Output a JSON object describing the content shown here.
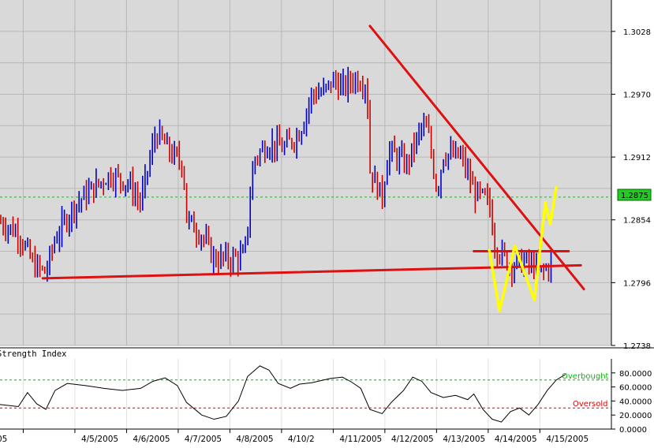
{
  "chart_data": {
    "type": "candlestick",
    "price_axis": {
      "ticks": [
        "1.3028",
        "1.2970",
        "1.2912",
        "1.2854",
        "1.2796",
        "1.2738"
      ],
      "tick_values": [
        1.3028,
        1.297,
        1.2912,
        1.2854,
        1.2796,
        1.2738
      ],
      "range": [
        1.2738,
        1.3057
      ]
    },
    "current_price": {
      "label": "1.2875",
      "value": 1.2875,
      "color": "#00aa00"
    },
    "x_labels": [
      "05",
      "4/5/2005",
      "4/6/2005",
      "4/7/2005",
      "4/8/2005",
      "4/10/2",
      "4/11/2005",
      "4/12/2005",
      "4/13/2005",
      "4/14/2005",
      "4/15/2005"
    ],
    "price_path": [
      [
        0,
        1.2852
      ],
      [
        0.03,
        1.2842
      ],
      [
        0.055,
        1.2812
      ],
      [
        0.075,
        1.2805
      ],
      [
        0.09,
        1.2836
      ],
      [
        0.12,
        1.2866
      ],
      [
        0.15,
        1.2882
      ],
      [
        0.18,
        1.2896
      ],
      [
        0.21,
        1.2888
      ],
      [
        0.23,
        1.287
      ],
      [
        0.255,
        1.2935
      ],
      [
        0.28,
        1.2915
      ],
      [
        0.3,
        1.2905
      ],
      [
        0.305,
        1.2855
      ],
      [
        0.33,
        1.284
      ],
      [
        0.35,
        1.2818
      ],
      [
        0.375,
        1.2818
      ],
      [
        0.4,
        1.282
      ],
      [
        0.415,
        1.291
      ],
      [
        0.44,
        1.2925
      ],
      [
        0.465,
        1.292
      ],
      [
        0.49,
        1.2935
      ],
      [
        0.51,
        1.297
      ],
      [
        0.53,
        1.2972
      ],
      [
        0.545,
        1.2983
      ],
      [
        0.56,
        1.2975
      ],
      [
        0.58,
        1.2985
      ],
      [
        0.6,
        1.298
      ],
      [
        0.605,
        1.29
      ],
      [
        0.625,
        1.2875
      ],
      [
        0.635,
        1.2918
      ],
      [
        0.665,
        1.2905
      ],
      [
        0.69,
        1.294
      ],
      [
        0.7,
        1.2935
      ],
      [
        0.715,
        1.288
      ],
      [
        0.725,
        1.2915
      ],
      [
        0.755,
        1.2912
      ],
      [
        0.775,
        1.288
      ],
      [
        0.8,
        1.287
      ],
      [
        0.81,
        1.283
      ],
      [
        0.835,
        1.2812
      ],
      [
        0.86,
        1.2815
      ],
      [
        0.885,
        1.2805
      ],
      [
        0.905,
        1.2815
      ]
    ],
    "rsi": {
      "title": "Strength Index",
      "axis_labels": [
        "80.0000",
        "60.0000",
        "40.0000",
        "20.0000",
        "0.0000"
      ],
      "axis_values": [
        80,
        60,
        40,
        20,
        0
      ],
      "overbought": {
        "label": "Overbought",
        "value": 70
      },
      "oversold": {
        "label": "Oversold",
        "value": 30
      },
      "values": [
        [
          0,
          35
        ],
        [
          0.03,
          32
        ],
        [
          0.045,
          52
        ],
        [
          0.06,
          36
        ],
        [
          0.075,
          28
        ],
        [
          0.09,
          55
        ],
        [
          0.11,
          65
        ],
        [
          0.14,
          62
        ],
        [
          0.17,
          58
        ],
        [
          0.2,
          55
        ],
        [
          0.23,
          58
        ],
        [
          0.25,
          68
        ],
        [
          0.27,
          73
        ],
        [
          0.29,
          62
        ],
        [
          0.305,
          38
        ],
        [
          0.33,
          20
        ],
        [
          0.35,
          14
        ],
        [
          0.37,
          18
        ],
        [
          0.39,
          40
        ],
        [
          0.405,
          75
        ],
        [
          0.425,
          90
        ],
        [
          0.44,
          84
        ],
        [
          0.455,
          65
        ],
        [
          0.475,
          58
        ],
        [
          0.49,
          64
        ],
        [
          0.51,
          66
        ],
        [
          0.54,
          72
        ],
        [
          0.56,
          74
        ],
        [
          0.575,
          67
        ],
        [
          0.59,
          58
        ],
        [
          0.605,
          28
        ],
        [
          0.625,
          22
        ],
        [
          0.64,
          38
        ],
        [
          0.66,
          55
        ],
        [
          0.675,
          74
        ],
        [
          0.69,
          68
        ],
        [
          0.705,
          52
        ],
        [
          0.725,
          45
        ],
        [
          0.745,
          48
        ],
        [
          0.765,
          42
        ],
        [
          0.775,
          50
        ],
        [
          0.79,
          28
        ],
        [
          0.805,
          14
        ],
        [
          0.82,
          10
        ],
        [
          0.835,
          25
        ],
        [
          0.85,
          30
        ],
        [
          0.865,
          20
        ],
        [
          0.88,
          35
        ],
        [
          0.895,
          55
        ],
        [
          0.91,
          70
        ],
        [
          0.925,
          78
        ]
      ]
    },
    "trend_lines": [
      {
        "name": "support",
        "color": "#dd1111",
        "from": [
          0.07,
          1.28
        ],
        "to": [
          0.95,
          1.2812
        ]
      },
      {
        "name": "resistance",
        "color": "#dd1111",
        "from": [
          0.605,
          1.3033
        ],
        "to": [
          0.955,
          1.279
        ]
      },
      {
        "name": "neckline",
        "color": "#dd1111",
        "from": [
          0.775,
          1.2825
        ],
        "to": [
          0.93,
          1.2825
        ]
      }
    ],
    "w_pattern": {
      "color": "#ffff00",
      "points": [
        [
          0.8,
          1.2827
        ],
        [
          0.817,
          1.277
        ],
        [
          0.842,
          1.283
        ],
        [
          0.874,
          1.278
        ],
        [
          0.892,
          1.287
        ],
        [
          0.9,
          1.285
        ],
        [
          0.91,
          1.2885
        ]
      ]
    },
    "colors": {
      "background": "#d9d9d9",
      "grid": "#b8b8b8",
      "up": "#0000cc",
      "down": "#cc0000",
      "current_line": "#00cc00",
      "overbought": "#00bb00",
      "oversold": "#dd0000"
    }
  }
}
